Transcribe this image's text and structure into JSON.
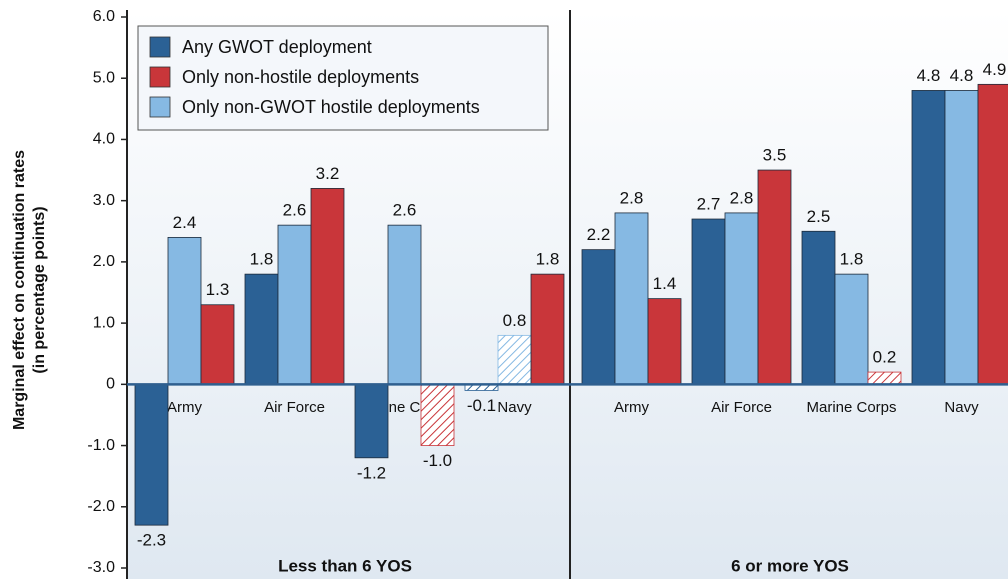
{
  "chart_data": {
    "type": "bar",
    "ylabel": [
      "Marginal effect on continuation rates",
      "(in percentage points)"
    ],
    "ylim": [
      -3,
      6
    ],
    "yticks": [
      {
        "value": -3,
        "label": "-3.0"
      },
      {
        "value": -2,
        "label": "-2.0"
      },
      {
        "value": -1,
        "label": "-1.0"
      },
      0,
      {
        "value": 1,
        "label": "1.0"
      },
      {
        "value": 2,
        "label": "2.0"
      },
      {
        "value": 3,
        "label": "3.0"
      },
      {
        "value": 4,
        "label": "4.0"
      },
      {
        "value": 5,
        "label": "5.0"
      },
      {
        "value": 6,
        "label": "6.0"
      }
    ],
    "series": [
      {
        "name": "Any GWOT deployment",
        "color": "#2b6195"
      },
      {
        "name": "Only non-hostile deployments",
        "color": "#c9363a"
      },
      {
        "name": "Only non-GWOT hostile deployments",
        "color": "#86b9e3"
      }
    ],
    "bar_order": [
      0,
      2,
      1
    ],
    "panels": [
      {
        "title": "Less than 6 YOS",
        "categories": [
          "Army",
          "Air Force",
          "Marine Corps",
          "Navy"
        ],
        "series": [
          {
            "values": [
              -2.3,
              1.8,
              -1.2,
              -0.1
            ],
            "value_labels": [
              "-2.3",
              "1.8",
              "-1.2",
              "-0.1"
            ],
            "hatched": [
              false,
              false,
              false,
              true
            ]
          },
          {
            "values": [
              1.3,
              3.2,
              -1,
              1.8
            ],
            "value_labels": [
              "1.3",
              "3.2",
              "-1.0",
              "1.8"
            ],
            "hatched": [
              false,
              false,
              true,
              false
            ]
          },
          {
            "values": [
              2.4,
              2.6,
              2.6,
              0.8
            ],
            "value_labels": [
              "2.4",
              "2.6",
              "2.6",
              "0.8"
            ],
            "hatched": [
              false,
              false,
              false,
              true
            ]
          }
        ]
      },
      {
        "title": "6 or more YOS",
        "categories": [
          "Army",
          "Air Force",
          "Marine Corps",
          "Navy"
        ],
        "series": [
          {
            "values": [
              2.2,
              2.7,
              2.5,
              4.8
            ],
            "value_labels": [
              "2.2",
              "2.7",
              "2.5",
              "4.8"
            ],
            "hatched": [
              false,
              false,
              false,
              false
            ]
          },
          {
            "values": [
              1.4,
              3.5,
              0.2,
              4.9
            ],
            "value_labels": [
              "1.4",
              "3.5",
              "0.2",
              "4.9"
            ],
            "hatched": [
              false,
              false,
              true,
              false
            ]
          },
          {
            "values": [
              2.8,
              2.8,
              1.8,
              4.8
            ],
            "value_labels": [
              "2.8",
              "2.8",
              "1.8",
              "4.8"
            ],
            "hatched": [
              false,
              false,
              false,
              false
            ]
          }
        ]
      }
    ]
  }
}
